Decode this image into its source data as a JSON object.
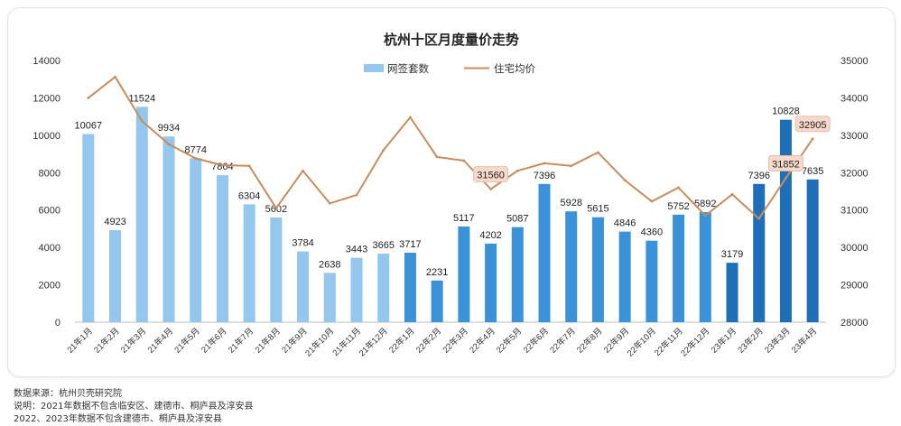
{
  "chart_data": {
    "type": "bar+line",
    "title": "杭州十区月度量价走势",
    "categories": [
      "21年1月",
      "21年2月",
      "21年3月",
      "21年4月",
      "21年5月",
      "21年6月",
      "21年7月",
      "21年8月",
      "21年9月",
      "21年10月",
      "21年11月",
      "21年12月",
      "22年1月",
      "22年2月",
      "22年3月",
      "22年4月",
      "22年5月",
      "22年6月",
      "22年7月",
      "22年8月",
      "22年9月",
      "22年10月",
      "22年11月",
      "22年12月",
      "23年1月",
      "23年2月",
      "23年3月",
      "23年4月"
    ],
    "series": [
      {
        "name": "网签套数",
        "type": "bar",
        "axis": "left",
        "values": [
          10067,
          4923,
          11524,
          9934,
          8774,
          7864,
          6304,
          5602,
          3784,
          2638,
          3443,
          3665,
          3717,
          2231,
          5117,
          4202,
          5087,
          7396,
          5928,
          5615,
          4846,
          4360,
          5752,
          5892,
          3179,
          7396,
          10828,
          7635
        ],
        "labels": [
          "10067",
          "4923",
          "11524",
          "9934",
          "8774",
          "7864",
          "6304",
          "5602",
          "3784",
          "2638",
          "3443",
          "3665",
          "3717",
          "2231",
          "5117",
          "4202",
          "5087",
          "7396",
          "5928",
          "5615",
          "4846",
          "4360",
          "5752",
          "5892",
          "3179",
          "7396",
          "10828",
          "7635"
        ],
        "colors": {
          "2021": "#93c7ee",
          "2022": "#3a93d8",
          "2023": "#1e6fb8"
        }
      },
      {
        "name": "住宅均价",
        "type": "line",
        "axis": "right",
        "color": "#c98d5b",
        "values": [
          34000,
          34560,
          33380,
          32760,
          32380,
          32200,
          32180,
          31050,
          32050,
          31180,
          31400,
          32600,
          33480,
          32420,
          32320,
          31560,
          32050,
          32250,
          32180,
          32540,
          31800,
          31230,
          31600,
          30850,
          31420,
          30770,
          31852,
          32905
        ],
        "highlights": [
          {
            "index": 15,
            "label": "31560"
          },
          {
            "index": 26,
            "label": "31852"
          },
          {
            "index": 27,
            "label": "32905"
          }
        ]
      }
    ],
    "y_left": {
      "min": 0,
      "max": 14000,
      "ticks": [
        "0",
        "2000",
        "4000",
        "6000",
        "8000",
        "10000",
        "12000",
        "14000"
      ]
    },
    "y_right": {
      "min": 28000,
      "max": 35000,
      "ticks": [
        "28000",
        "29000",
        "30000",
        "31000",
        "32000",
        "33000",
        "34000",
        "35000"
      ]
    },
    "grid": false,
    "legend_position": "top-center"
  },
  "footnotes": [
    "数据来源：杭州贝壳研究院",
    "说明：2021年数据不包含临安区、建德市、桐庐县及淳安县",
    "2022、2023年数据不包含建德市、桐庐县及淳安县"
  ]
}
